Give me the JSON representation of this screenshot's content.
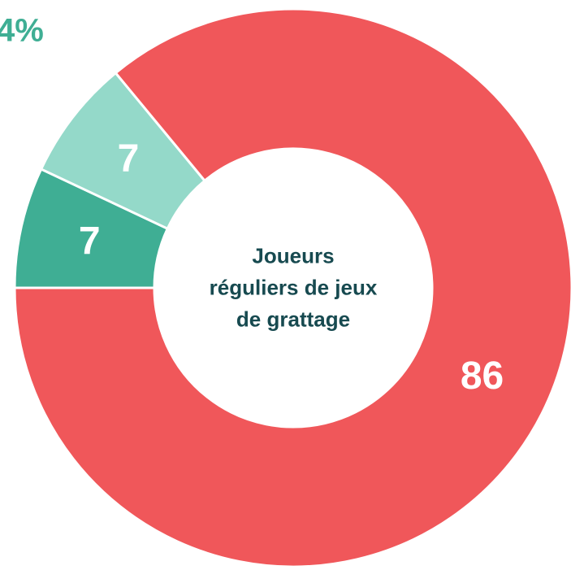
{
  "chart_data": {
    "type": "donut",
    "title": "Joueurs réguliers de jeux de grattage",
    "values": [
      7,
      7,
      86
    ],
    "colors": [
      "#3fae94",
      "#94d9c9",
      "#f0575a"
    ],
    "annotation": "4%",
    "annotation_color": "#3fae94"
  }
}
